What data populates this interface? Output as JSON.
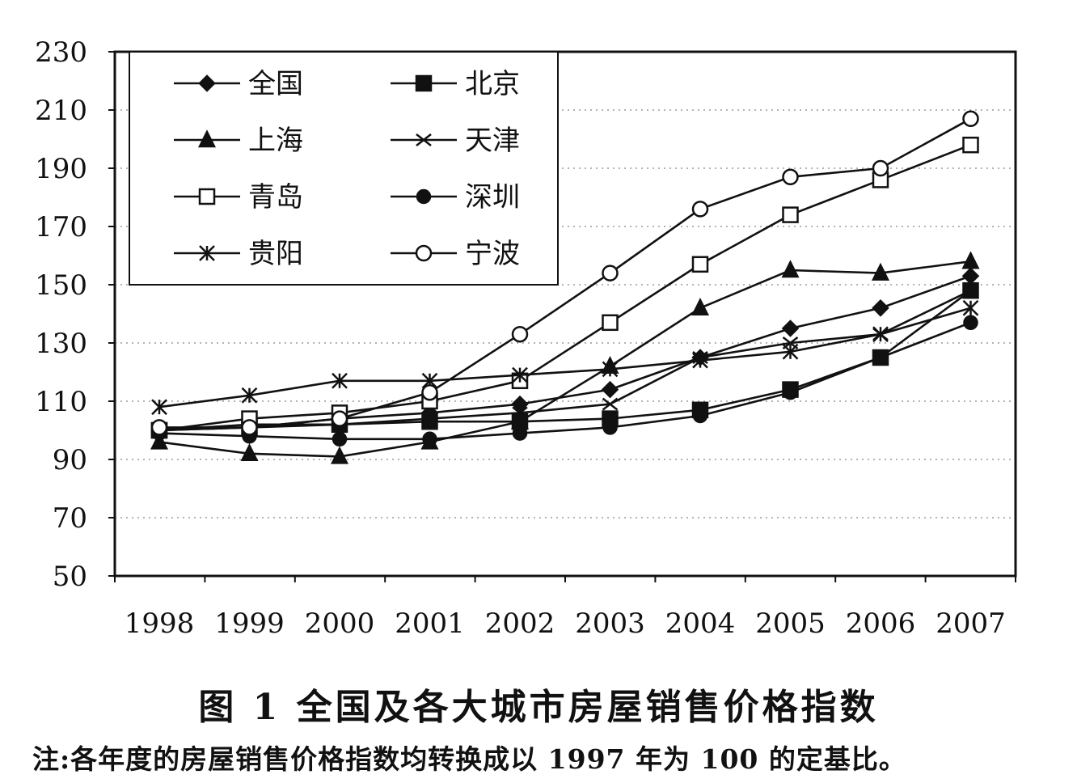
{
  "chart_data": {
    "type": "line",
    "title": "图 1 全国及各大城市房屋销售价格指数",
    "note": "注:各年度的房屋销售价格指数均转换成以 1997 年为 100 的定基比。",
    "xlabel": "",
    "ylabel": "",
    "categories": [
      "1998",
      "1999",
      "2000",
      "2001",
      "2002",
      "2003",
      "2004",
      "2005",
      "2006",
      "2007"
    ],
    "y_ticks": [
      "230",
      "210",
      "190",
      "170",
      "150",
      "130",
      "110",
      "90",
      "70",
      "50"
    ],
    "ylim": [
      50,
      230
    ],
    "grid": "horizontal dotted",
    "legend_position": "top-left",
    "series": [
      {
        "name": "全国",
        "marker": "diamond",
        "values": [
          100,
          101,
          104,
          106,
          109,
          114,
          125,
          135,
          142,
          153
        ]
      },
      {
        "name": "北京",
        "marker": "square-filled",
        "values": [
          100,
          101,
          102,
          103,
          103,
          104,
          107,
          114,
          125,
          148
        ]
      },
      {
        "name": "上海",
        "marker": "triangle",
        "values": [
          96,
          92,
          91,
          96,
          103,
          122,
          142,
          155,
          154,
          158
        ]
      },
      {
        "name": "天津",
        "marker": "x",
        "values": [
          100,
          102,
          102,
          104,
          106,
          109,
          125,
          130,
          133,
          148
        ]
      },
      {
        "name": "青岛",
        "marker": "square-open",
        "values": [
          100,
          104,
          106,
          110,
          117,
          137,
          157,
          174,
          186,
          198
        ]
      },
      {
        "name": "深圳",
        "marker": "circle-filled",
        "values": [
          99,
          98,
          97,
          97,
          99,
          101,
          105,
          113,
          125,
          137
        ]
      },
      {
        "name": "贵阳",
        "marker": "asterisk",
        "values": [
          108,
          112,
          117,
          117,
          119,
          121,
          124,
          127,
          133,
          142
        ]
      },
      {
        "name": "宁波",
        "marker": "circle-open",
        "values": [
          101,
          101,
          104,
          113,
          133,
          154,
          176,
          187,
          190,
          207
        ]
      }
    ]
  }
}
